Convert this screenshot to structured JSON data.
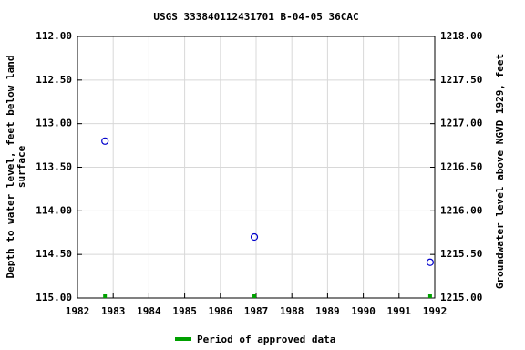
{
  "chart_data": {
    "type": "scatter",
    "title": "USGS 333840112431701 B-04-05 36CAC",
    "ylabel": [
      "Depth to water level, feet below land",
      "surface"
    ],
    "y2label": "Groundwater level above NGVD 1929, feet",
    "x": [
      1982.77,
      1986.95,
      1991.87
    ],
    "series": [
      {
        "color": "#0000cc",
        "values": [
          113.2,
          114.3,
          114.59
        ]
      }
    ],
    "approved_periods": {
      "name": "Period of approved data",
      "color": "#00a000",
      "x": [
        1982.77,
        1986.95,
        1991.87
      ]
    },
    "xlim": [
      1982,
      1992
    ],
    "xticks": [
      1982,
      1983,
      1984,
      1985,
      1986,
      1987,
      1988,
      1989,
      1990,
      1991,
      1992
    ],
    "ylim": [
      115,
      112
    ],
    "yticks": [
      {
        "value": 112,
        "label": "112.00"
      },
      {
        "value": 112.5,
        "label": "112.50"
      },
      {
        "value": 113,
        "label": "113.00"
      },
      {
        "value": 113.5,
        "label": "113.50"
      },
      {
        "value": 114,
        "label": "114.00"
      },
      {
        "value": 114.5,
        "label": "114.50"
      },
      {
        "value": 115,
        "label": "115.00"
      }
    ],
    "y2lim": [
      1215,
      1218
    ],
    "y2ticks": [
      {
        "value": 1218,
        "label": "1218.00"
      },
      {
        "value": 1217.5,
        "label": "1217.50"
      },
      {
        "value": 1217,
        "label": "1217.00"
      },
      {
        "value": 1216.5,
        "label": "1216.50"
      },
      {
        "value": 1216,
        "label": "1216.00"
      },
      {
        "value": 1215.5,
        "label": "1215.50"
      },
      {
        "value": 1215,
        "label": "1215.00"
      }
    ],
    "grid": true
  }
}
